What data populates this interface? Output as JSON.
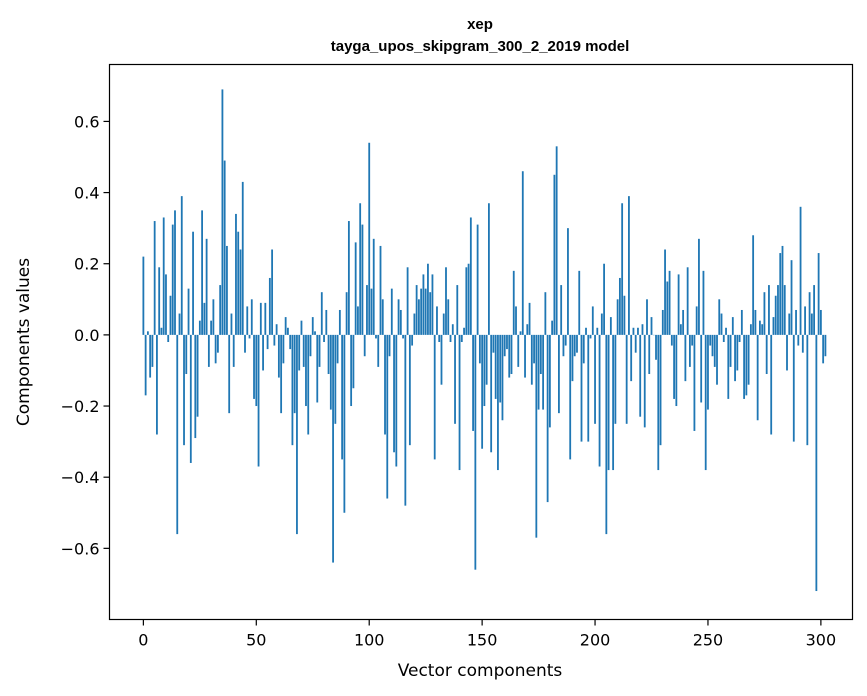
{
  "chart_data": {
    "type": "bar",
    "title_line1": "xep",
    "title_line2": "tayga_upos_skipgram_300_2_2019 model",
    "xlabel": "Vector components",
    "ylabel": "Components values",
    "xlim": [
      -15,
      314
    ],
    "ylim": [
      -0.8,
      0.76
    ],
    "xticks": [
      0,
      50,
      100,
      150,
      200,
      250,
      300
    ],
    "xtick_labels": [
      "0",
      "50",
      "100",
      "150",
      "200",
      "250",
      "300"
    ],
    "yticks": [
      -0.6,
      -0.4,
      -0.2,
      0.0,
      0.2,
      0.4,
      0.6
    ],
    "ytick_labels": [
      "−0.6",
      "−0.4",
      "−0.2",
      "0.0",
      "0.2",
      "0.4",
      "0.6"
    ],
    "bar_color": "#1f77b4",
    "values": [
      0.22,
      -0.17,
      0.01,
      -0.12,
      -0.09,
      0.32,
      -0.28,
      0.19,
      0.02,
      0.33,
      0.17,
      -0.02,
      0.11,
      0.31,
      0.35,
      -0.56,
      0.06,
      0.39,
      -0.31,
      -0.11,
      0.13,
      -0.36,
      0.29,
      -0.29,
      -0.23,
      0.04,
      0.35,
      0.09,
      0.27,
      -0.09,
      0.04,
      0.1,
      -0.08,
      -0.05,
      0.14,
      0.69,
      0.49,
      0.25,
      -0.22,
      0.06,
      -0.09,
      0.34,
      0.29,
      0.24,
      0.43,
      -0.05,
      0.08,
      -0.01,
      0.1,
      -0.18,
      -0.2,
      -0.37,
      0.09,
      -0.1,
      0.09,
      -0.04,
      0.16,
      0.24,
      -0.03,
      0.03,
      -0.12,
      -0.22,
      -0.08,
      0.05,
      0.02,
      -0.04,
      -0.31,
      -0.22,
      -0.56,
      -0.1,
      0.04,
      -0.09,
      -0.2,
      -0.28,
      -0.06,
      0.05,
      0.01,
      -0.19,
      -0.09,
      0.12,
      -0.02,
      0.07,
      -0.11,
      -0.21,
      -0.64,
      -0.25,
      -0.08,
      0.07,
      -0.35,
      -0.5,
      0.12,
      0.32,
      -0.2,
      -0.15,
      0.26,
      0.08,
      0.37,
      0.31,
      -0.06,
      0.14,
      0.54,
      0.13,
      0.27,
      -0.01,
      -0.09,
      0.25,
      0.1,
      -0.28,
      -0.46,
      -0.06,
      0.13,
      -0.33,
      -0.37,
      0.1,
      0.07,
      -0.01,
      -0.48,
      0.19,
      -0.31,
      -0.03,
      0.06,
      0.14,
      0.1,
      0.13,
      0.17,
      0.13,
      0.2,
      0.12,
      0.17,
      -0.35,
      0.08,
      -0.02,
      -0.14,
      0.06,
      0.19,
      0.1,
      -0.02,
      0.03,
      -0.25,
      0.14,
      -0.38,
      -0.02,
      0.02,
      0.19,
      0.2,
      0.33,
      -0.27,
      -0.66,
      0.31,
      -0.08,
      -0.32,
      -0.2,
      -0.14,
      0.37,
      -0.33,
      -0.05,
      -0.18,
      -0.38,
      -0.19,
      -0.24,
      -0.06,
      -0.04,
      -0.12,
      -0.11,
      0.18,
      0.08,
      -0.09,
      0.01,
      0.46,
      -0.12,
      0.03,
      0.09,
      -0.14,
      -0.08,
      -0.57,
      -0.21,
      -0.11,
      -0.21,
      0.12,
      -0.47,
      -0.26,
      0.04,
      0.45,
      0.53,
      -0.22,
      0.14,
      -0.06,
      -0.03,
      0.3,
      -0.35,
      -0.13,
      -0.06,
      -0.05,
      0.18,
      -0.3,
      -0.08,
      0.02,
      -0.3,
      -0.01,
      0.08,
      -0.25,
      0.02,
      -0.37,
      0.06,
      0.2,
      -0.56,
      -0.38,
      0.05,
      -0.38,
      -0.25,
      0.1,
      0.16,
      0.37,
      0.11,
      -0.25,
      0.39,
      -0.13,
      0.02,
      -0.05,
      0.02,
      -0.23,
      0.03,
      -0.26,
      0.1,
      -0.11,
      0.05,
      0.0,
      -0.07,
      -0.38,
      -0.31,
      0.07,
      0.24,
      0.15,
      0.18,
      -0.03,
      -0.18,
      -0.2,
      0.17,
      0.03,
      0.07,
      -0.13,
      0.19,
      -0.09,
      -0.03,
      -0.27,
      0.08,
      0.27,
      -0.19,
      0.18,
      -0.38,
      -0.21,
      -0.03,
      -0.06,
      -0.09,
      -0.14,
      0.1,
      0.06,
      -0.02,
      0.02,
      -0.18,
      -0.09,
      0.05,
      -0.13,
      -0.1,
      -0.02,
      0.07,
      -0.18,
      -0.17,
      -0.14,
      0.03,
      0.28,
      0.07,
      -0.24,
      0.04,
      0.03,
      0.12,
      -0.11,
      0.14,
      -0.28,
      0.05,
      0.11,
      0.14,
      0.23,
      0.25,
      0.14,
      -0.1,
      0.06,
      0.21,
      -0.3,
      0.07,
      -0.03,
      0.36,
      -0.05,
      0.08,
      -0.31,
      0.12,
      0.06,
      0.14,
      -0.72,
      0.23,
      0.07,
      -0.08,
      -0.06
    ]
  }
}
